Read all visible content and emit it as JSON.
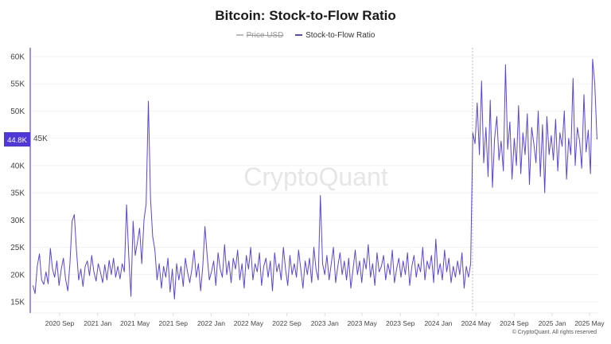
{
  "chart_data": {
    "type": "line",
    "title": "Bitcoin: Stock-to-Flow Ratio",
    "legend": [
      {
        "name": "Price USD",
        "color": "#bbbbbb",
        "hidden": true
      },
      {
        "name": "Stock-to-Flow Ratio",
        "color": "#5a45d6",
        "hidden": false
      }
    ],
    "legend_position": "top-center",
    "watermark": "CryptoQuant",
    "copyright": "© CryptoQuant. All rights reserved",
    "hover_label": "44.8K",
    "hover_date": "2024-04-20",
    "grid": true,
    "ylim": [
      14000,
      61000
    ],
    "y_ticks": [
      {
        "value": 15000,
        "label": "15K"
      },
      {
        "value": 20000,
        "label": "20K"
      },
      {
        "value": 25000,
        "label": "25K"
      },
      {
        "value": 30000,
        "label": "30K"
      },
      {
        "value": 35000,
        "label": "35K"
      },
      {
        "value": 40000,
        "label": "40K"
      },
      {
        "value": 45000,
        "label": "45K"
      },
      {
        "value": 50000,
        "label": "50K"
      },
      {
        "value": 55000,
        "label": "55K"
      },
      {
        "value": 60000,
        "label": "60K"
      }
    ],
    "x_ticks": [
      {
        "date": "2020-09-01",
        "label": "2020 Sep"
      },
      {
        "date": "2021-01-01",
        "label": "2021 Jan"
      },
      {
        "date": "2021-05-01",
        "label": "2021 May"
      },
      {
        "date": "2021-09-01",
        "label": "2021 Sep"
      },
      {
        "date": "2022-01-01",
        "label": "2022 Jan"
      },
      {
        "date": "2022-05-01",
        "label": "2022 May"
      },
      {
        "date": "2022-09-01",
        "label": "2022 Sep"
      },
      {
        "date": "2023-01-01",
        "label": "2023 Jan"
      },
      {
        "date": "2023-05-01",
        "label": "2023 May"
      },
      {
        "date": "2023-09-01",
        "label": "2023 Sep"
      },
      {
        "date": "2024-01-01",
        "label": "2024 Jan"
      },
      {
        "date": "2024-05-01",
        "label": "2024 May"
      },
      {
        "date": "2024-09-01",
        "label": "2024 Sep"
      },
      {
        "date": "2025-01-01",
        "label": "2025 Jan"
      },
      {
        "date": "2025-05-01",
        "label": "2025 May"
      }
    ],
    "x": [
      "2020-06-07",
      "2020-06-14",
      "2020-06-21",
      "2020-06-28",
      "2020-07-05",
      "2020-07-12",
      "2020-07-19",
      "2020-07-26",
      "2020-08-02",
      "2020-08-09",
      "2020-08-16",
      "2020-08-23",
      "2020-08-30",
      "2020-09-06",
      "2020-09-13",
      "2020-09-20",
      "2020-09-27",
      "2020-10-04",
      "2020-10-11",
      "2020-10-18",
      "2020-10-25",
      "2020-11-01",
      "2020-11-08",
      "2020-11-15",
      "2020-11-22",
      "2020-11-29",
      "2020-12-06",
      "2020-12-13",
      "2020-12-20",
      "2020-12-27",
      "2021-01-03",
      "2021-01-10",
      "2021-01-17",
      "2021-01-24",
      "2021-01-31",
      "2021-02-07",
      "2021-02-14",
      "2021-02-21",
      "2021-02-28",
      "2021-03-07",
      "2021-03-14",
      "2021-03-21",
      "2021-03-28",
      "2021-04-04",
      "2021-04-11",
      "2021-04-18",
      "2021-04-25",
      "2021-05-02",
      "2021-05-09",
      "2021-05-16",
      "2021-05-23",
      "2021-05-30",
      "2021-06-06",
      "2021-06-13",
      "2021-06-20",
      "2021-06-27",
      "2021-07-04",
      "2021-07-11",
      "2021-07-18",
      "2021-07-25",
      "2021-08-01",
      "2021-08-08",
      "2021-08-15",
      "2021-08-22",
      "2021-08-29",
      "2021-09-05",
      "2021-09-12",
      "2021-09-19",
      "2021-09-26",
      "2021-10-03",
      "2021-10-10",
      "2021-10-17",
      "2021-10-24",
      "2021-10-31",
      "2021-11-07",
      "2021-11-14",
      "2021-11-21",
      "2021-11-28",
      "2021-12-05",
      "2021-12-12",
      "2021-12-19",
      "2021-12-26",
      "2022-01-02",
      "2022-01-09",
      "2022-01-16",
      "2022-01-23",
      "2022-01-30",
      "2022-02-06",
      "2022-02-13",
      "2022-02-20",
      "2022-02-27",
      "2022-03-06",
      "2022-03-13",
      "2022-03-20",
      "2022-03-27",
      "2022-04-03",
      "2022-04-10",
      "2022-04-17",
      "2022-04-24",
      "2022-05-01",
      "2022-05-08",
      "2022-05-15",
      "2022-05-22",
      "2022-05-29",
      "2022-06-05",
      "2022-06-12",
      "2022-06-19",
      "2022-06-26",
      "2022-07-03",
      "2022-07-10",
      "2022-07-17",
      "2022-07-24",
      "2022-07-31",
      "2022-08-07",
      "2022-08-14",
      "2022-08-21",
      "2022-08-28",
      "2022-09-04",
      "2022-09-11",
      "2022-09-18",
      "2022-09-25",
      "2022-10-02",
      "2022-10-09",
      "2022-10-16",
      "2022-10-23",
      "2022-10-30",
      "2022-11-06",
      "2022-11-13",
      "2022-11-20",
      "2022-11-27",
      "2022-12-04",
      "2022-12-11",
      "2022-12-18",
      "2022-12-25",
      "2023-01-01",
      "2023-01-08",
      "2023-01-15",
      "2023-01-22",
      "2023-01-29",
      "2023-02-05",
      "2023-02-12",
      "2023-02-19",
      "2023-02-26",
      "2023-03-05",
      "2023-03-12",
      "2023-03-19",
      "2023-03-26",
      "2023-04-02",
      "2023-04-09",
      "2023-04-16",
      "2023-04-23",
      "2023-04-30",
      "2023-05-07",
      "2023-05-14",
      "2023-05-21",
      "2023-05-28",
      "2023-06-04",
      "2023-06-11",
      "2023-06-18",
      "2023-06-25",
      "2023-07-02",
      "2023-07-09",
      "2023-07-16",
      "2023-07-23",
      "2023-07-30",
      "2023-08-06",
      "2023-08-13",
      "2023-08-20",
      "2023-08-27",
      "2023-09-03",
      "2023-09-10",
      "2023-09-17",
      "2023-09-24",
      "2023-10-01",
      "2023-10-08",
      "2023-10-15",
      "2023-10-22",
      "2023-10-29",
      "2023-11-05",
      "2023-11-12",
      "2023-11-19",
      "2023-11-26",
      "2023-12-03",
      "2023-12-10",
      "2023-12-17",
      "2023-12-24",
      "2023-12-31",
      "2024-01-07",
      "2024-01-14",
      "2024-01-21",
      "2024-01-28",
      "2024-02-04",
      "2024-02-11",
      "2024-02-18",
      "2024-02-25",
      "2024-03-03",
      "2024-03-10",
      "2024-03-17",
      "2024-03-24",
      "2024-03-31",
      "2024-04-07",
      "2024-04-14",
      "2024-04-21",
      "2024-04-28",
      "2024-05-05",
      "2024-05-12",
      "2024-05-19",
      "2024-05-26",
      "2024-06-02",
      "2024-06-09",
      "2024-06-16",
      "2024-06-23",
      "2024-06-30",
      "2024-07-07",
      "2024-07-14",
      "2024-07-21",
      "2024-07-28",
      "2024-08-04",
      "2024-08-11",
      "2024-08-18",
      "2024-08-25",
      "2024-09-01",
      "2024-09-08",
      "2024-09-15",
      "2024-09-22",
      "2024-09-29",
      "2024-10-06",
      "2024-10-13",
      "2024-10-20",
      "2024-10-27",
      "2024-11-03",
      "2024-11-10",
      "2024-11-17",
      "2024-11-24",
      "2024-12-01",
      "2024-12-08",
      "2024-12-15",
      "2024-12-22",
      "2024-12-29",
      "2025-01-05",
      "2025-01-12",
      "2025-01-19",
      "2025-01-26",
      "2025-02-02",
      "2025-02-09",
      "2025-02-16",
      "2025-02-23",
      "2025-03-02",
      "2025-03-09",
      "2025-03-16",
      "2025-03-23",
      "2025-03-30",
      "2025-04-06",
      "2025-04-13",
      "2025-04-20",
      "2025-04-27",
      "2025-05-04",
      "2025-05-11",
      "2025-05-18",
      "2025-05-25"
    ],
    "series": [
      {
        "name": "Stock-to-Flow Ratio",
        "values": [
          18000,
          16500,
          21500,
          23800,
          19000,
          18200,
          20500,
          18300,
          24800,
          21000,
          19500,
          22500,
          18000,
          21000,
          23000,
          19200,
          17000,
          22000,
          29800,
          31000,
          24500,
          19000,
          21000,
          17800,
          21500,
          22500,
          19800,
          23500,
          20500,
          18800,
          22000,
          20500,
          18500,
          21800,
          19000,
          22600,
          20000,
          23000,
          19500,
          21500,
          19200,
          22000,
          20500,
          32800,
          23500,
          16000,
          29800,
          23500,
          26000,
          28500,
          22000,
          30000,
          33000,
          51800,
          34000,
          27000,
          24500,
          19000,
          22000,
          17500,
          21500,
          19500,
          23000,
          16800,
          21000,
          15500,
          22000,
          19000,
          21500,
          17800,
          23000,
          20500,
          18500,
          21000,
          24500,
          19500,
          22000,
          17000,
          21500,
          28800,
          23500,
          19000,
          20500,
          22500,
          18000,
          24000,
          21000,
          19500,
          25500,
          20000,
          22500,
          18500,
          23000,
          21000,
          24500,
          19000,
          22000,
          17500,
          23500,
          21000,
          25000,
          19000,
          22000,
          20500,
          24000,
          18000,
          21500,
          23000,
          19500,
          22500,
          17000,
          24000,
          20500,
          22000,
          19000,
          25000,
          21000,
          18000,
          23500,
          20000,
          22000,
          19500,
          24500,
          21000,
          17500,
          22500,
          20000,
          23000,
          18500,
          25000,
          21000,
          19000,
          34500,
          22000,
          20000,
          23500,
          19000,
          22000,
          25000,
          18500,
          21500,
          24000,
          20000,
          22500,
          19000,
          23000,
          17500,
          21000,
          24500,
          20000,
          22500,
          18500,
          23000,
          21000,
          25500,
          19500,
          22000,
          18000,
          24000,
          20500,
          21500,
          23500,
          19000,
          22000,
          20000,
          24500,
          18500,
          21000,
          23000,
          19500,
          22500,
          20000,
          24000,
          18000,
          21500,
          23500,
          19500,
          22000,
          20500,
          25000,
          19000,
          22500,
          21000,
          23500,
          18500,
          26500,
          20000,
          22000,
          19000,
          24500,
          20500,
          23000,
          18500,
          21500,
          19500,
          22500,
          20000,
          24000,
          17500,
          21500,
          19500,
          22000,
          46000,
          44000,
          51500,
          42000,
          55500,
          40500,
          47000,
          38000,
          52000,
          36000,
          45000,
          49000,
          41000,
          44500,
          39000,
          58500,
          43000,
          48000,
          37500,
          45000,
          40000,
          51000,
          38500,
          46000,
          42000,
          49500,
          36500,
          47000,
          44000,
          40500,
          50000,
          38000,
          47500,
          35000,
          49000,
          42000,
          45500,
          41000,
          48500,
          39000,
          46000,
          43500,
          50000,
          37500,
          45000,
          42000,
          56000,
          40000,
          47000,
          44500,
          39500,
          53000,
          42500,
          46500,
          38500,
          59500,
          55000,
          44800
        ]
      }
    ]
  }
}
